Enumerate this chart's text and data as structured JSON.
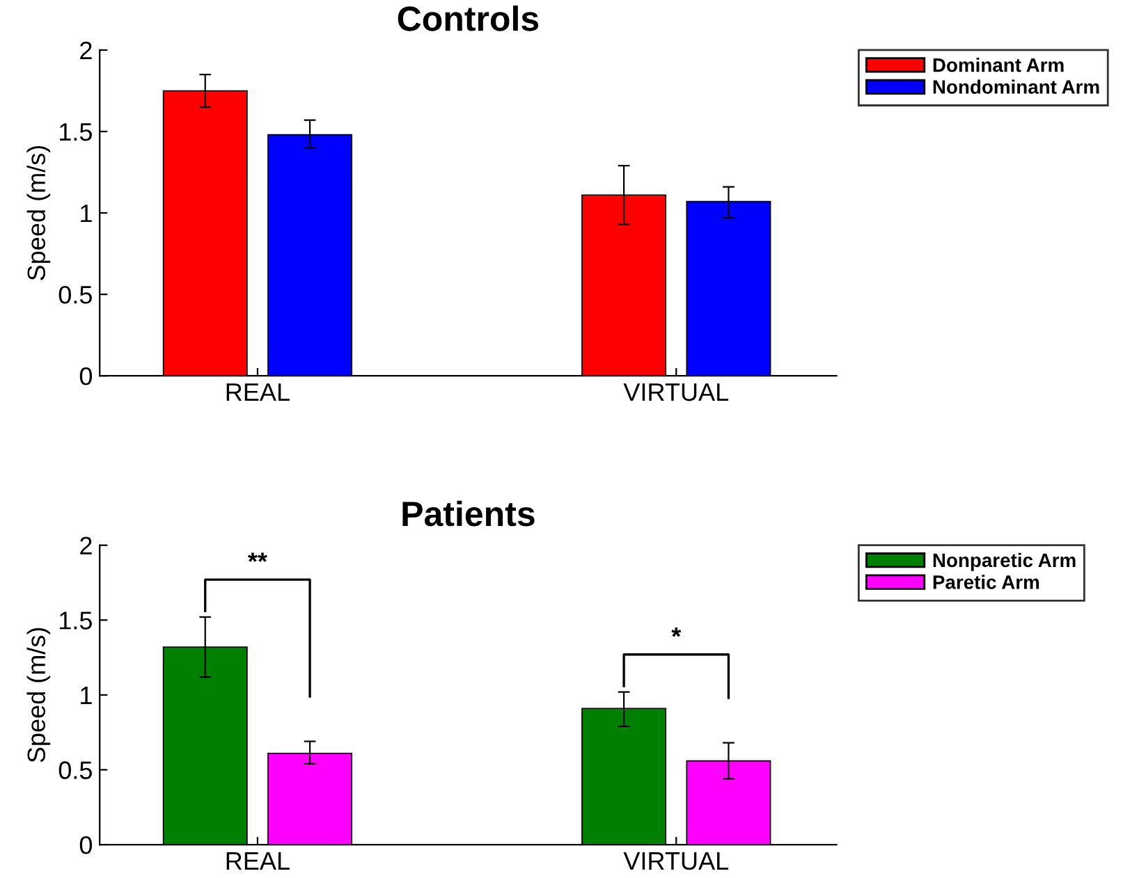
{
  "chart_data": [
    {
      "type": "bar",
      "title": "Controls",
      "ylabel": "Speed (m/s)",
      "categories": [
        "REAL",
        "VIRTUAL"
      ],
      "series": [
        {
          "name": "Dominant Arm",
          "color": "#ff0000",
          "values": [
            1.75,
            1.11
          ],
          "errors": [
            [
              1.65,
              1.85
            ],
            [
              0.93,
              1.29
            ]
          ]
        },
        {
          "name": "Nondominant Arm",
          "color": "#0000ff",
          "values": [
            1.48,
            1.07
          ],
          "errors": [
            [
              1.4,
              1.57
            ],
            [
              0.97,
              1.16
            ]
          ]
        }
      ],
      "ylim": [
        0,
        2
      ],
      "yticks": [
        0,
        0.5,
        1,
        1.5,
        2
      ],
      "grid": false,
      "legend": "top right"
    },
    {
      "type": "bar",
      "title": "Patients",
      "ylabel": "Speed (m/s)",
      "categories": [
        "REAL",
        "VIRTUAL"
      ],
      "series": [
        {
          "name": "Nonparetic Arm",
          "color": "#008000",
          "values": [
            1.32,
            0.91
          ],
          "errors": [
            [
              1.12,
              1.52
            ],
            [
              0.79,
              1.02
            ]
          ]
        },
        {
          "name": "Paretic Arm",
          "color": "#ff00ff",
          "values": [
            0.61,
            0.56
          ],
          "errors": [
            [
              0.54,
              0.69
            ],
            [
              0.44,
              0.68
            ]
          ]
        }
      ],
      "ylim": [
        0,
        2
      ],
      "yticks": [
        0,
        0.5,
        1,
        1.5,
        2
      ],
      "grid": false,
      "legend": "top right",
      "annotations": [
        "**",
        "*"
      ]
    }
  ]
}
